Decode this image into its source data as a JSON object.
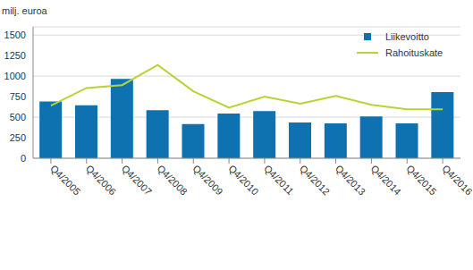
{
  "chart_data": {
    "type": "bar",
    "y_label": "milj. euroa",
    "categories": [
      "Q4/2005",
      "Q4/2006",
      "Q4/2007",
      "Q4/2008",
      "Q4/2009",
      "Q4/2010",
      "Q4/2011",
      "Q4/2012",
      "Q4/2013",
      "Q4/2014",
      "Q4/2015",
      "Q4/2016"
    ],
    "series": [
      {
        "name": "Liikevoitto",
        "type": "bar",
        "color": "#0f72b0",
        "values": [
          690,
          645,
          965,
          585,
          415,
          545,
          575,
          435,
          425,
          510,
          425,
          805
        ]
      },
      {
        "name": "Rahoituskate",
        "type": "line",
        "color": "#b7d433",
        "values": [
          640,
          855,
          890,
          1135,
          815,
          615,
          750,
          665,
          760,
          650,
          595,
          595
        ]
      }
    ],
    "ylim": [
      0,
      1600
    ],
    "yticks": [
      0,
      250,
      500,
      750,
      1000,
      1250,
      1500
    ],
    "grid": true,
    "legend": "top-right"
  }
}
